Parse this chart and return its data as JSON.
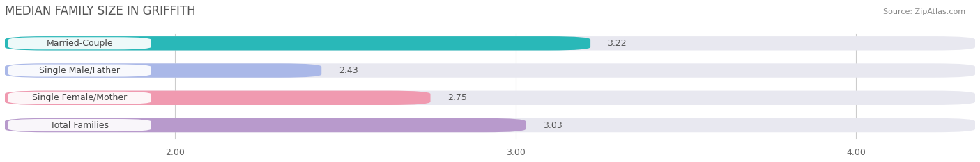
{
  "title": "MEDIAN FAMILY SIZE IN GRIFFITH",
  "source": "Source: ZipAtlas.com",
  "categories": [
    "Married-Couple",
    "Single Male/Father",
    "Single Female/Mother",
    "Total Families"
  ],
  "values": [
    3.22,
    2.43,
    2.75,
    3.03
  ],
  "bar_colors": [
    "#29b8b8",
    "#aab8e8",
    "#f09ab0",
    "#b89acc"
  ],
  "bg_bar_color": "#e8e8f0",
  "xlim_left": 1.5,
  "xlim_right": 4.35,
  "xticks": [
    2.0,
    3.0,
    4.0
  ],
  "xtick_labels": [
    "2.00",
    "3.00",
    "4.00"
  ],
  "bar_height": 0.52,
  "background_color": "#ffffff",
  "title_fontsize": 12,
  "label_fontsize": 9,
  "value_fontsize": 9,
  "source_fontsize": 8
}
